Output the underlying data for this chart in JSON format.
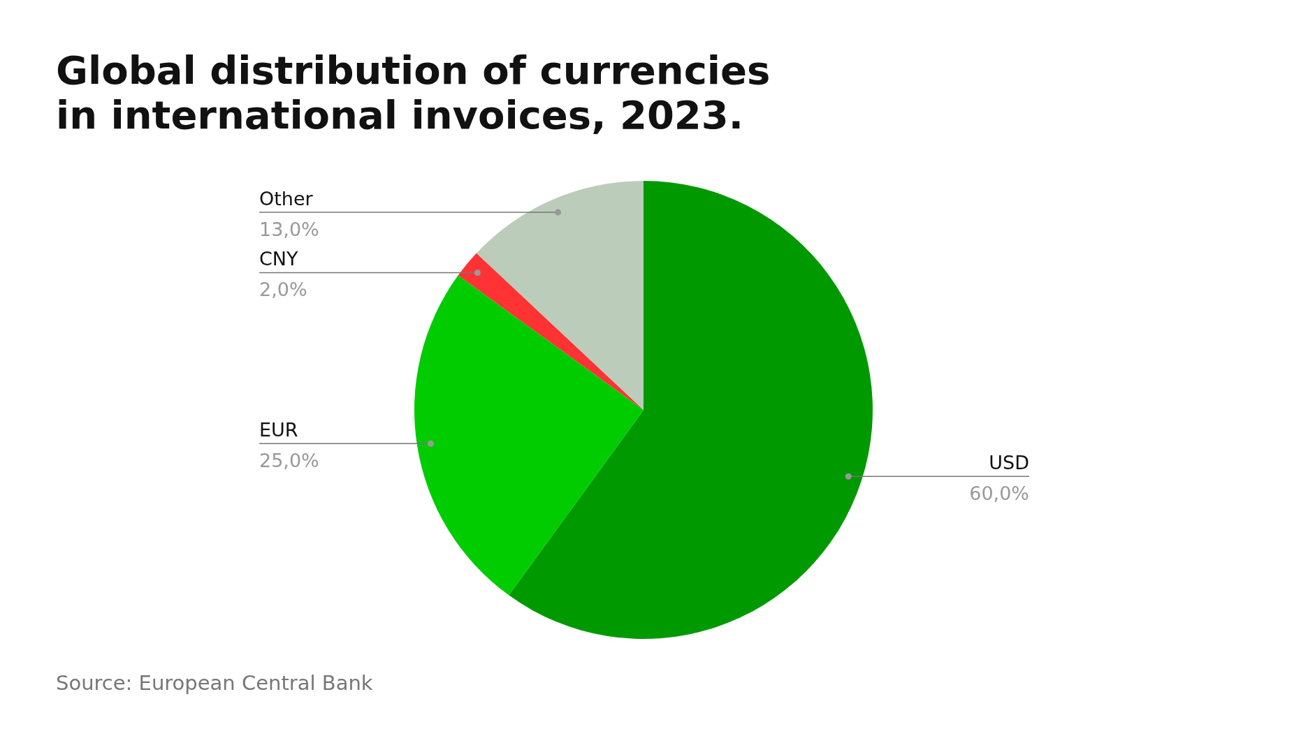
{
  "chart_data": {
    "type": "pie",
    "title": "Global distribution of currencies in international invoices, 2023.",
    "categories": [
      "USD",
      "EUR",
      "CNY",
      "Other"
    ],
    "values": [
      60.0,
      25.0,
      2.0,
      13.0
    ],
    "colors": [
      "#009900",
      "#00cc00",
      "#ff3333",
      "#bbccbb"
    ],
    "value_labels": [
      "60,0%",
      "25,0%",
      "2,0%",
      "13,0%"
    ],
    "annotations": [
      "Source: European Central Bank"
    ]
  }
}
